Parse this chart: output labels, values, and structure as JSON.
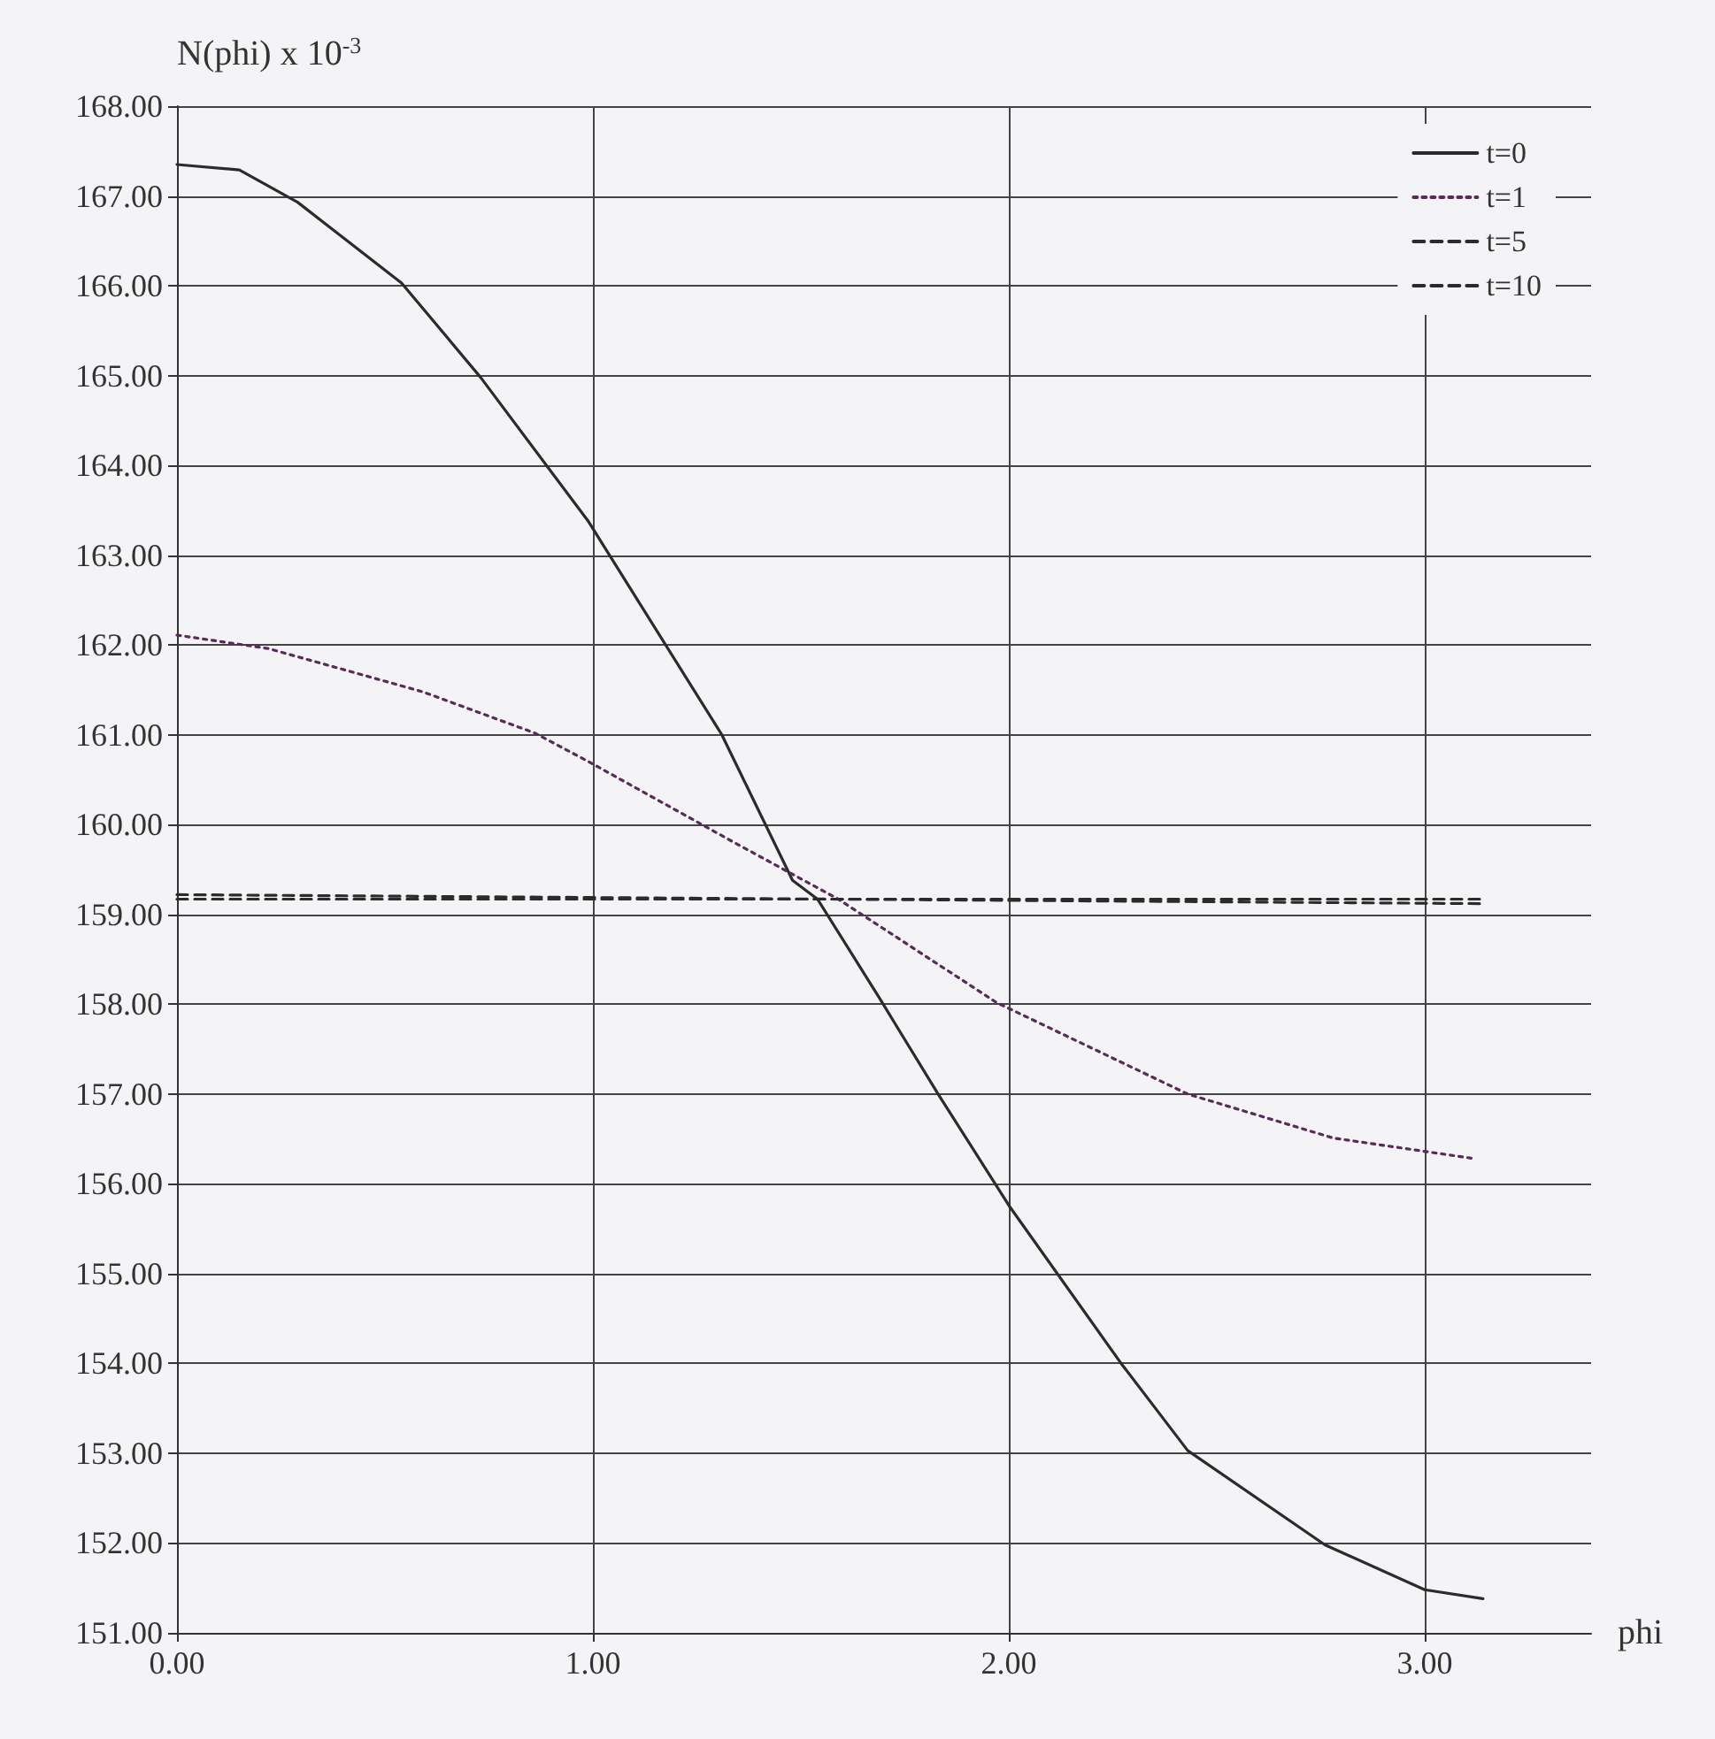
{
  "chart_data": {
    "type": "line",
    "xlabel": "phi",
    "ylabel": "N(phi) x 10$^{-3}$",
    "xlim": [
      0,
      3.4
    ],
    "ylim": [
      151,
      168
    ],
    "xticks": [
      {
        "value": 0,
        "label": "0.00"
      },
      {
        "value": 1,
        "label": "1.00"
      },
      {
        "value": 2,
        "label": "2.00"
      },
      {
        "value": 3,
        "label": "3.00"
      }
    ],
    "yticks": [
      {
        "value": 151,
        "label": "151.00"
      },
      {
        "value": 152,
        "label": "152.00"
      },
      {
        "value": 153,
        "label": "153.00"
      },
      {
        "value": 154,
        "label": "154.00"
      },
      {
        "value": 155,
        "label": "155.00"
      },
      {
        "value": 156,
        "label": "156.00"
      },
      {
        "value": 157,
        "label": "157.00"
      },
      {
        "value": 158,
        "label": "158.00"
      },
      {
        "value": 159,
        "label": "159.00"
      },
      {
        "value": 160,
        "label": "160.00"
      },
      {
        "value": 161,
        "label": "161.00"
      },
      {
        "value": 162,
        "label": "162.00"
      },
      {
        "value": 163,
        "label": "163.00"
      },
      {
        "value": 164,
        "label": "164.00"
      },
      {
        "value": 165,
        "label": "165.00"
      },
      {
        "value": 166,
        "label": "166.00"
      },
      {
        "value": 167,
        "label": "167.00"
      },
      {
        "value": 168,
        "label": "168.00"
      }
    ],
    "grid": true,
    "legend": "top right",
    "series": [
      {
        "name": "t=0",
        "color": "#2b2b2b",
        "line_style": "solid",
        "x": [
          0,
          0.15,
          0.29,
          0.54,
          0.73,
          0.99,
          1.31,
          1.48,
          1.54,
          1.69,
          1.83,
          2.0,
          2.27,
          2.43,
          2.76,
          3.0,
          3.14
        ],
        "values": [
          167.35,
          167.29,
          166.93,
          166.03,
          164.98,
          163.37,
          161.0,
          159.38,
          159.17,
          158.06,
          157.0,
          155.76,
          154.0,
          153.03,
          151.98,
          151.48,
          151.38
        ]
      },
      {
        "name": "t=1",
        "color": "#5a2a5a",
        "line_style": "dotted",
        "x": [
          0,
          0.22,
          0.59,
          0.86,
          0.99,
          1.34,
          1.59,
          1.97,
          2.43,
          2.78,
          3.12
        ],
        "values": [
          162.11,
          161.96,
          161.48,
          161.02,
          160.7,
          159.8,
          159.17,
          158.02,
          157.0,
          156.51,
          156.28
        ]
      },
      {
        "name": "t=5",
        "color": "#2b2b2b",
        "line_style": "dashed",
        "x": [
          0,
          1.57,
          3.14
        ],
        "values": [
          159.22,
          159.17,
          159.12
        ]
      },
      {
        "name": "t=10",
        "color": "#2b2b2b",
        "line_style": "dashed",
        "x": [
          0,
          1.57,
          3.14
        ],
        "values": [
          159.17,
          159.17,
          159.17
        ]
      }
    ]
  }
}
